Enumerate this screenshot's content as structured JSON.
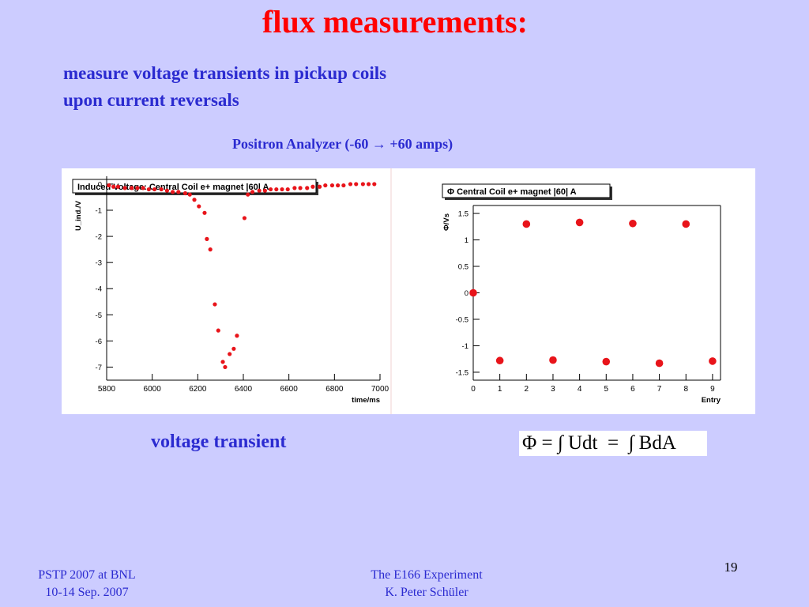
{
  "slide": {
    "title": "flux measurements:",
    "subtitle_line1": "measure voltage transients in pickup coils",
    "subtitle_line2": "upon current reversals",
    "plot_caption": "Positron Analyzer  (-60 → +60 amps)",
    "voltage_caption": "voltage transient",
    "formula": "Φ = ∫ Udt  =  ∫ BdA",
    "footer_left_line1": "PSTP 2007 at BNL",
    "footer_left_line2": "10-14 Sep. 2007",
    "footer_center_line1": "The E166 Experiment",
    "footer_center_line2": "K. Peter Schüler",
    "page_number": "19"
  },
  "colors": {
    "background": "#ccccff",
    "title": "#ff0000",
    "text": "#2b2bd0",
    "marker": "#e8141a"
  },
  "chart_data": [
    {
      "type": "scatter",
      "title": "Induced Voltage: Central Coil e+ magnet |60| A",
      "xlabel": "time/ms",
      "ylabel": "U_ind./V",
      "xlim": [
        5800,
        7000
      ],
      "ylim": [
        -7.5,
        0.3
      ],
      "x_ticks": [
        "5800",
        "6000",
        "6200",
        "6400",
        "6600",
        "6800",
        "7000"
      ],
      "y_ticks": [
        "0",
        "-1",
        "-2",
        "-3",
        "-4",
        "-5",
        "-6",
        "-7"
      ],
      "grid": false,
      "x": [
        5810,
        5830,
        5850,
        5880,
        5910,
        5935,
        5960,
        5985,
        6010,
        6040,
        6065,
        6090,
        6115,
        6145,
        6165,
        6185,
        6205,
        6230,
        6240,
        6255,
        6275,
        6290,
        6310,
        6320,
        6340,
        6358,
        6372,
        6405,
        6420,
        6440,
        6470,
        6495,
        6520,
        6545,
        6570,
        6595,
        6625,
        6650,
        6680,
        6705,
        6735,
        6760,
        6790,
        6815,
        6840,
        6870,
        6895,
        6925,
        6950,
        6975
      ],
      "y": [
        -0.05,
        -0.1,
        -0.1,
        -0.15,
        -0.15,
        -0.15,
        -0.15,
        -0.2,
        -0.2,
        -0.2,
        -0.25,
        -0.3,
        -0.3,
        -0.35,
        -0.4,
        -0.6,
        -0.85,
        -1.1,
        -2.1,
        -2.5,
        -4.6,
        -5.6,
        -6.8,
        -7.0,
        -6.5,
        -6.3,
        -5.8,
        -1.3,
        -0.4,
        -0.3,
        -0.25,
        -0.25,
        -0.2,
        -0.2,
        -0.2,
        -0.2,
        -0.15,
        -0.15,
        -0.15,
        -0.1,
        -0.1,
        -0.05,
        -0.05,
        -0.05,
        -0.05,
        0.0,
        0.0,
        0.0,
        0.0,
        0.0
      ]
    },
    {
      "type": "scatter",
      "title": "Φ Central Coil e+ magnet |60| A",
      "xlabel": "Entry",
      "ylabel": "Φ/Vs",
      "xlim": [
        0,
        9.3
      ],
      "ylim": [
        -1.65,
        1.65
      ],
      "x_ticks": [
        "0",
        "1",
        "2",
        "3",
        "4",
        "5",
        "6",
        "7",
        "8",
        "9"
      ],
      "y_ticks": [
        "1.5",
        "1",
        "0.5",
        "0",
        "-0.5",
        "-1",
        "-1.5"
      ],
      "grid": false,
      "x": [
        0,
        1,
        2,
        3,
        4,
        5,
        6,
        7,
        8,
        9
      ],
      "y": [
        0.0,
        -1.28,
        1.3,
        -1.27,
        1.33,
        -1.3,
        1.31,
        -1.33,
        1.3,
        -1.29
      ]
    }
  ]
}
